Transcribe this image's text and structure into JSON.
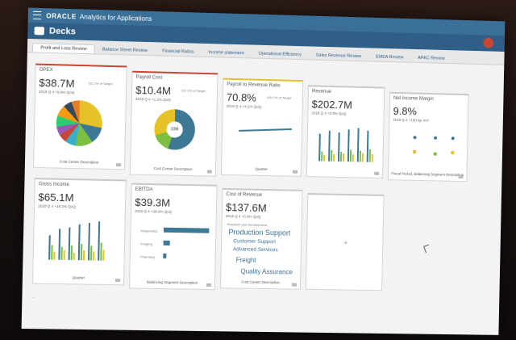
{
  "app": {
    "brand": "ORACLE",
    "name": "Analytics for Applications"
  },
  "deck": {
    "title": "Decks"
  },
  "tabs": [
    {
      "label": "Profit and Loss Review"
    },
    {
      "label": "Balance Sheet Review"
    },
    {
      "label": "Financial Ratios"
    },
    {
      "label": "Income statement"
    },
    {
      "label": "Operational Efficiency"
    },
    {
      "label": "Sales Revenue Review"
    },
    {
      "label": "EMEA Review"
    },
    {
      "label": "APAC Review"
    }
  ],
  "cards": {
    "opex": {
      "title": "OPEX",
      "kpi": "$38.7M",
      "sub": "2018 Q 4   +9.9%  QoQ",
      "target": "111.1% of Target",
      "foot": "Cost Center Description"
    },
    "payroll": {
      "title": "Payroll Cost",
      "kpi": "$10.4M",
      "sub": "2018 Q 4   +1.2%  QoQ",
      "target": "112.1% of Target",
      "center": "10M",
      "foot": "Cost Center Description"
    },
    "ratio": {
      "title": "Payroll to Revenue Ratio",
      "kpi": "70.8%",
      "sub": "2018 Q 4   +4.1%  QoQ",
      "target": "100.7% of Target",
      "foot": "Quarter"
    },
    "revenue": {
      "title": "Revenue",
      "kpi": "$202.7M",
      "sub": "2018 Q 4   +0.9%  QoQ"
    },
    "net": {
      "title": "Net Income Margin",
      "kpi": "9.8%",
      "sub": "2018 Q 4   +100 bp  YoY",
      "foot": "Fiscal Period, Balancing Segment Description"
    },
    "gross": {
      "title": "Gross Income",
      "kpi": "$65.1M",
      "sub": "2018 Q 4   +18.2%  QoQ",
      "foot": "Quarter"
    },
    "ebitda": {
      "title": "EBITDA",
      "kpi": "$39.3M",
      "sub": "2018 Q 4   +28.9%  QoQ",
      "rows": [
        "Diagnostics",
        "Imaging",
        "Pharmacy"
      ],
      "foot": "Balancing Segment Description"
    },
    "cor": {
      "title": "Cost of Revenue",
      "kpi": "$137.6M",
      "sub": "2018 Q 4   +0.9%  QoQ",
      "heading": "Research and Development",
      "words": [
        "Production Support",
        "Customer Support",
        "Advanced Services",
        "Freight",
        "Quality Assurance"
      ],
      "foot": "Cost Center Description"
    }
  },
  "colors": {
    "accent": "#2f5f86",
    "teal": "#3d7894",
    "yellow": "#e6c229",
    "green": "#7fbf3f",
    "red": "#c74634"
  }
}
